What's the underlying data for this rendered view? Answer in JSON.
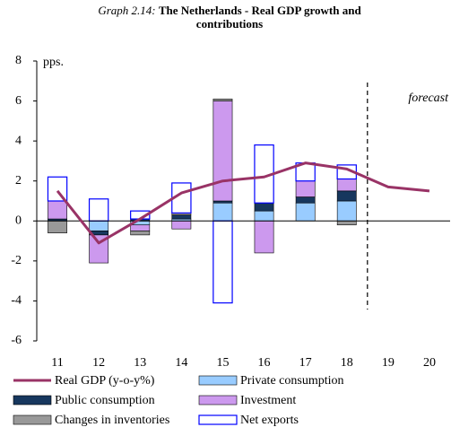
{
  "chart_data": {
    "type": "bar",
    "label": "Graph 2.14:",
    "title": "The Netherlands - Real GDP growth and contributions",
    "y_axis_label": "pps.",
    "annotation": "forecast",
    "categories": [
      "11",
      "12",
      "13",
      "14",
      "15",
      "16",
      "17",
      "18",
      "19",
      "20"
    ],
    "series": [
      {
        "name": "Real GDP (y-o-y%)",
        "type": "line",
        "color": "#993366",
        "values": [
          1.5,
          -1.1,
          0.1,
          1.4,
          2.0,
          2.2,
          2.9,
          2.6,
          1.7,
          1.5
        ]
      },
      {
        "name": "Private consumption",
        "color": "#99ccff",
        "values": [
          0.0,
          -0.5,
          -0.2,
          0.1,
          0.9,
          0.5,
          0.9,
          1.0,
          null,
          null
        ]
      },
      {
        "name": "Public consumption",
        "color": "#17375e",
        "values": [
          0.1,
          -0.2,
          0.1,
          0.2,
          0.1,
          0.4,
          0.3,
          0.5,
          null,
          null
        ]
      },
      {
        "name": "Investment",
        "color": "#cc99ee",
        "values": [
          0.9,
          -1.4,
          -0.3,
          -0.4,
          5.0,
          -1.6,
          0.8,
          0.6,
          null,
          null
        ]
      },
      {
        "name": "Changes in inventories",
        "color": "#999999",
        "values": [
          -0.6,
          0.0,
          -0.2,
          0.1,
          0.1,
          0.0,
          0.0,
          -0.2,
          null,
          null
        ]
      },
      {
        "name": "Net exports",
        "color": "#ffffff",
        "stroke": "#0000ff",
        "values": [
          1.2,
          1.1,
          0.4,
          1.5,
          -4.1,
          2.9,
          0.9,
          0.7,
          null,
          null
        ]
      }
    ],
    "ylim": [
      -6,
      8
    ],
    "yticks": [
      -6,
      -4,
      -2,
      0,
      2,
      4,
      6,
      8
    ]
  }
}
